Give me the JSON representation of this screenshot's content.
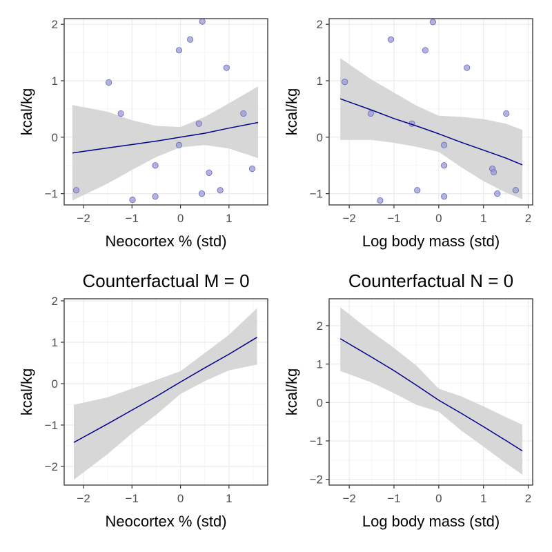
{
  "chart_data": [
    {
      "type": "scatter",
      "title": "",
      "xlabel": "Neocortex % (std)",
      "ylabel": "kcal/kg",
      "xlim": [
        -2.4,
        1.8
      ],
      "ylim": [
        -1.2,
        2.1
      ],
      "xticks": [
        -2,
        -1,
        0,
        1
      ],
      "yticks": [
        -1,
        0,
        1,
        2
      ],
      "grid": true,
      "points": [
        {
          "x": -2.15,
          "y": -0.94
        },
        {
          "x": -1.48,
          "y": 0.97
        },
        {
          "x": -1.23,
          "y": 0.42
        },
        {
          "x": -0.99,
          "y": -1.11
        },
        {
          "x": -0.52,
          "y": -0.5
        },
        {
          "x": -0.52,
          "y": -1.05
        },
        {
          "x": -0.03,
          "y": 1.54
        },
        {
          "x": -0.03,
          "y": -0.14
        },
        {
          "x": 0.2,
          "y": 1.73
        },
        {
          "x": 0.38,
          "y": 0.24
        },
        {
          "x": 0.45,
          "y": 2.05
        },
        {
          "x": 0.44,
          "y": -1.0
        },
        {
          "x": 0.59,
          "y": -0.63
        },
        {
          "x": 0.82,
          "y": -0.94
        },
        {
          "x": 0.95,
          "y": 1.23
        },
        {
          "x": 1.3,
          "y": 0.42
        },
        {
          "x": 1.48,
          "y": -0.56
        }
      ],
      "fit": {
        "x": [
          -2.23,
          -1.5,
          -1.0,
          -0.5,
          0.0,
          0.5,
          1.0,
          1.6
        ],
        "mean": [
          -0.28,
          -0.19,
          -0.13,
          -0.07,
          0.0,
          0.07,
          0.16,
          0.26
        ],
        "lower": [
          -1.12,
          -0.82,
          -0.58,
          -0.35,
          -0.18,
          -0.14,
          -0.2,
          -0.37
        ],
        "upper": [
          0.57,
          0.45,
          0.3,
          0.2,
          0.18,
          0.36,
          0.6,
          0.9
        ]
      }
    },
    {
      "type": "scatter",
      "title": "",
      "xlabel": "Log body mass (std)",
      "ylabel": "kcal/kg",
      "xlim": [
        -2.45,
        2.1
      ],
      "ylim": [
        -1.2,
        2.1
      ],
      "xticks": [
        -2,
        -1,
        0,
        1,
        2
      ],
      "yticks": [
        -1,
        0,
        1,
        2
      ],
      "grid": true,
      "points": [
        {
          "x": -2.1,
          "y": 0.98
        },
        {
          "x": -1.52,
          "y": 0.42
        },
        {
          "x": -1.07,
          "y": 1.73
        },
        {
          "x": -1.31,
          "y": -1.12
        },
        {
          "x": -0.6,
          "y": 0.24
        },
        {
          "x": -0.48,
          "y": -0.94
        },
        {
          "x": -0.3,
          "y": 1.54
        },
        {
          "x": -0.13,
          "y": 2.04
        },
        {
          "x": 0.12,
          "y": -0.14
        },
        {
          "x": 0.12,
          "y": -0.5
        },
        {
          "x": 0.12,
          "y": -1.05
        },
        {
          "x": 0.63,
          "y": 1.23
        },
        {
          "x": 1.2,
          "y": -0.56
        },
        {
          "x": 1.23,
          "y": -0.62
        },
        {
          "x": 1.31,
          "y": -1.0
        },
        {
          "x": 1.51,
          "y": 0.42
        },
        {
          "x": 1.72,
          "y": -0.94
        }
      ],
      "fit": {
        "x": [
          -2.2,
          -1.5,
          -1.0,
          -0.5,
          0.0,
          0.5,
          1.0,
          1.5,
          1.87
        ],
        "mean": [
          0.68,
          0.48,
          0.33,
          0.2,
          0.06,
          -0.09,
          -0.23,
          -0.37,
          -0.49
        ],
        "lower": [
          -0.05,
          -0.05,
          -0.1,
          -0.17,
          -0.26,
          -0.53,
          -0.78,
          -0.98,
          -1.1
        ],
        "upper": [
          1.4,
          1.02,
          0.79,
          0.56,
          0.38,
          0.36,
          0.32,
          0.24,
          0.13
        ]
      }
    },
    {
      "type": "line",
      "title": "Counterfactual M = 0",
      "xlabel": "Neocortex % (std)",
      "ylabel": "kcal/kg",
      "xlim": [
        -2.4,
        1.8
      ],
      "ylim": [
        -2.45,
        2.05
      ],
      "xticks": [
        -2,
        -1,
        0,
        1
      ],
      "yticks": [
        -2,
        -1,
        0,
        1,
        2
      ],
      "grid": true,
      "points": [],
      "fit": {
        "x": [
          -2.2,
          -1.5,
          -1.0,
          -0.5,
          0.0,
          0.5,
          1.0,
          1.58
        ],
        "mean": [
          -1.42,
          -0.97,
          -0.64,
          -0.31,
          0.04,
          0.38,
          0.71,
          1.12
        ],
        "lower": [
          -2.32,
          -1.7,
          -1.2,
          -0.75,
          -0.25,
          0.06,
          0.32,
          0.46
        ],
        "upper": [
          -0.51,
          -0.33,
          -0.12,
          0.09,
          0.3,
          0.74,
          1.18,
          1.82
        ]
      }
    },
    {
      "type": "line",
      "title": "Counterfactual N = 0",
      "xlabel": "Log body mass (std)",
      "ylabel": "kcal/kg",
      "xlim": [
        -2.45,
        2.1
      ],
      "ylim": [
        -2.15,
        2.7
      ],
      "xticks": [
        -2,
        -1,
        0,
        1,
        2
      ],
      "yticks": [
        -2,
        -1,
        0,
        1,
        2
      ],
      "grid": true,
      "points": [],
      "fit": {
        "x": [
          -2.2,
          -1.5,
          -1.0,
          -0.5,
          0.0,
          0.5,
          1.0,
          1.5,
          1.87
        ],
        "mean": [
          1.66,
          1.18,
          0.83,
          0.45,
          0.06,
          -0.28,
          -0.63,
          -0.99,
          -1.26
        ],
        "lower": [
          0.82,
          0.52,
          0.24,
          -0.06,
          -0.24,
          -0.73,
          -1.15,
          -1.58,
          -1.88
        ],
        "upper": [
          2.48,
          1.84,
          1.42,
          0.96,
          0.36,
          0.16,
          -0.1,
          -0.38,
          -0.58
        ]
      }
    }
  ],
  "colors": {
    "point_fill": "#9a9ad6",
    "point_stroke": "#6a6ab8",
    "line": "#00008b",
    "ribbon": "#d3d3d3",
    "grid_major": "#ebebeb",
    "grid_minor": "#f5f5f5",
    "panel_border": "#333333",
    "tick_text": "#4d4d4d",
    "title_text": "#000000"
  }
}
